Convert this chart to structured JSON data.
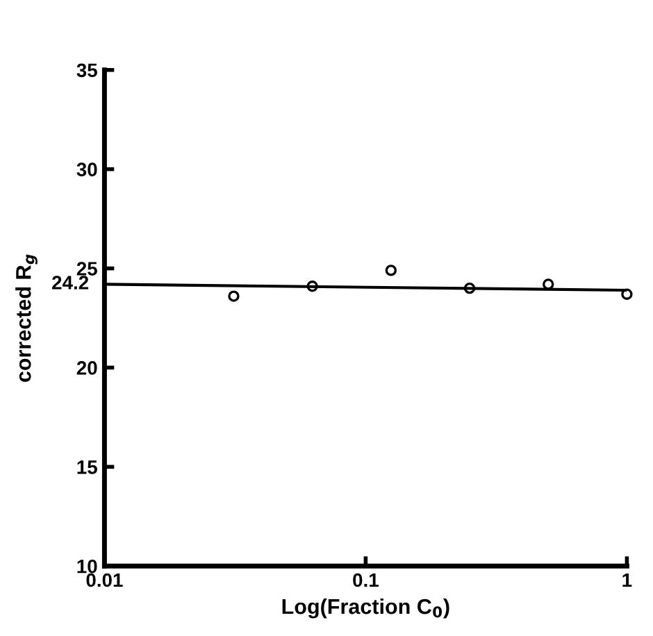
{
  "chart_data": {
    "type": "scatter",
    "xlabel": "Log(Fraction C$_{0}$)",
    "ylabel": "corrected R$_{g}$",
    "log": "x",
    "xlim": [
      0.01,
      1
    ],
    "xticks": [
      0.01,
      0.1,
      1
    ],
    "ylim": [
      10,
      35
    ],
    "yticks": [
      10,
      15,
      20,
      25,
      30,
      35
    ],
    "grid": false,
    "series": [
      {
        "marker": "circle",
        "color": "#000000",
        "x": [
          0.03125,
          0.0625,
          0.125,
          0.25,
          0.5,
          1
        ],
        "values": [
          23.6,
          24.1,
          24.9,
          24.0,
          24.2,
          23.7
        ]
      },
      {
        "type": "line",
        "color": "#000000",
        "x": [
          0.01,
          1
        ],
        "values": [
          24.2,
          23.9
        ]
      }
    ],
    "annotations": [
      {
        "text": "24.2",
        "x": 0.01,
        "y": 24.2
      }
    ]
  }
}
